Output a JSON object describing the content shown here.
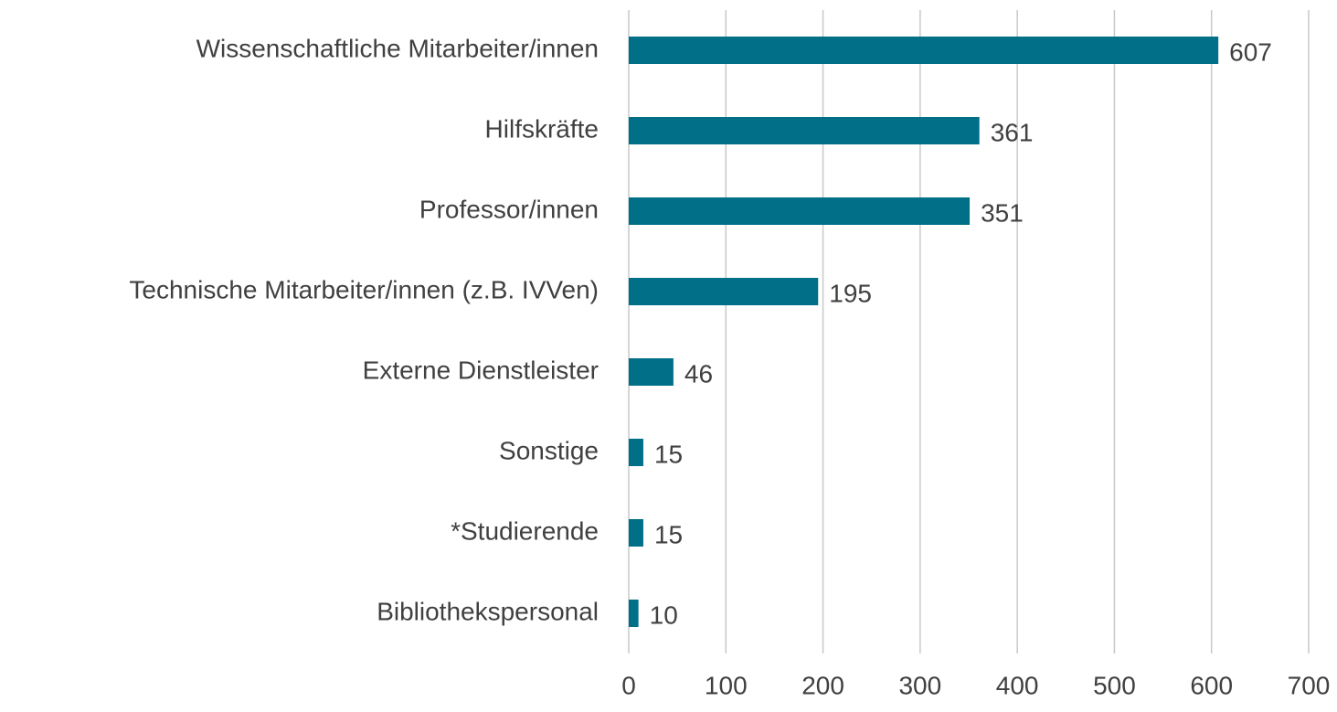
{
  "chart_data": {
    "type": "bar",
    "orientation": "horizontal",
    "categories": [
      "Wissenschaftliche Mitarbeiter/innen",
      "Hilfskräfte",
      "Professor/innen",
      "Technische Mitarbeiter/innen (z.B. IVVen)",
      "Externe Dienstleister",
      "Sonstige",
      "*Studierende",
      "Bibliothekspersonal"
    ],
    "values": [
      607,
      361,
      351,
      195,
      46,
      15,
      15,
      10
    ],
    "color": "#006f87",
    "xlim": [
      0,
      700
    ],
    "xticks": [
      0,
      100,
      200,
      300,
      400,
      500,
      600,
      700
    ],
    "grid": true
  }
}
